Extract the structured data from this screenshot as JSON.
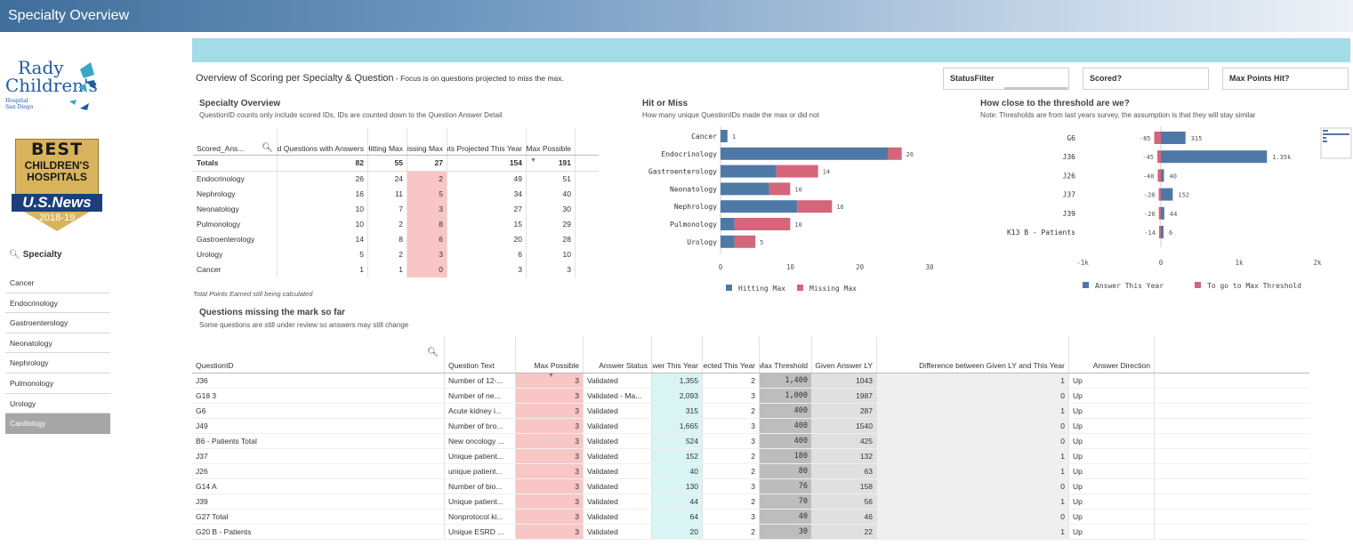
{
  "app": {
    "title": "Specialty Overview"
  },
  "logo": {
    "line1": "Rady",
    "line2": "Children's",
    "line3": "Hospital",
    "line4": "San Diego",
    "badge_best": "BEST",
    "badge_line1": "CHILDREN'S",
    "badge_line2": "HOSPITALS",
    "badge_usnews": "U.S.News",
    "badge_year": "2018-19"
  },
  "sidebar": {
    "search_label": "Specialty",
    "items": [
      "Cancer",
      "Endocrinology",
      "Gastroenterology",
      "Neonatology",
      "Nephrology",
      "Pulmonology",
      "Urology",
      "Cardiology"
    ],
    "selected": "Cardiology"
  },
  "overview": {
    "title": "Overview of Scoring per Specialty & Question",
    "subtitle": " - Focus is on questions projected to miss the max."
  },
  "filters": [
    "StatusFilter",
    "Scored?",
    "Max Points Hit?"
  ],
  "specialty_overview": {
    "title": "Specialty Overview",
    "subtitle": "QuestionID counts only include scored IDs, IDs are counted down to the Question Answer Detail",
    "headers": [
      "Scored_Ans...",
      "Total Scored Questions with Answers",
      "Hitting Max",
      "Missing Max",
      "Points Projected This Year",
      "Max Possible"
    ],
    "totals": [
      "Totals",
      "82",
      "55",
      "27",
      "154",
      "191"
    ],
    "rows": [
      [
        "Endocrinology",
        "26",
        "24",
        "2",
        "49",
        "51"
      ],
      [
        "Nephrology",
        "16",
        "11",
        "5",
        "34",
        "40"
      ],
      [
        "Neonatology",
        "10",
        "7",
        "3",
        "27",
        "30"
      ],
      [
        "Pulmonology",
        "10",
        "2",
        "8",
        "15",
        "29"
      ],
      [
        "Gastroenterology",
        "14",
        "8",
        "6",
        "20",
        "28"
      ],
      [
        "Urology",
        "5",
        "2",
        "3",
        "6",
        "10"
      ],
      [
        "Cancer",
        "1",
        "1",
        "0",
        "3",
        "3"
      ]
    ],
    "note": "Total Points Earned still being calculated"
  },
  "hit_or_miss": {
    "title": "Hit or Miss",
    "subtitle": "How many unique QuestionIDs made the max or did not"
  },
  "threshold": {
    "title": "How close to the threshold are we?",
    "subtitle": "Note: Thresholds are from last years survey, the assumption is that they will stay similar"
  },
  "chart_data": [
    {
      "type": "bar",
      "orientation": "horizontal",
      "stacked": true,
      "categories": [
        "Cancer",
        "Endocrinology",
        "Gastroenterology",
        "Neonatology",
        "Nephrology",
        "Pulmonology",
        "Urology"
      ],
      "series": [
        {
          "name": "Hitting Max",
          "color": "#4e79a7",
          "values": [
            1,
            24,
            8,
            7,
            11,
            2,
            2
          ]
        },
        {
          "name": "Missing Max",
          "color": "#d4657a",
          "values": [
            0,
            2,
            6,
            3,
            5,
            8,
            3
          ]
        }
      ],
      "totals_labels": [
        "1",
        "26",
        "14",
        "10",
        "16",
        "10",
        "5"
      ],
      "xlim": [
        0,
        30
      ],
      "xticks": [
        "0",
        "10",
        "20",
        "30"
      ],
      "legend": "bottom"
    },
    {
      "type": "bar",
      "orientation": "horizontal",
      "categories": [
        "G6",
        "J36",
        "J26",
        "J37",
        "J39",
        "K13 B - Patients"
      ],
      "series": [
        {
          "name": "Answer This Year",
          "color": "#4e79a7",
          "values": [
            315,
            1355,
            40,
            152,
            44,
            6
          ]
        },
        {
          "name": "To go to Max Threshold",
          "color": "#d4657a",
          "values": [
            -85,
            -45,
            -40,
            -28,
            -26,
            -14
          ]
        }
      ],
      "value_labels_positive": [
        "315",
        "1.35k",
        "40",
        "152",
        "44",
        "6"
      ],
      "value_labels_negative": [
        "-85",
        "-45",
        "-40",
        "-28",
        "-26",
        "-14"
      ],
      "xlim": [
        -1000,
        2000
      ],
      "xticks": [
        "-1k",
        "0",
        "1k",
        "2k"
      ],
      "legend": "bottom"
    }
  ],
  "questions": {
    "title": "Questions missing the mark so far",
    "subtitle": "Some questions are still under review so answers may still change",
    "headers": [
      "QuestionID",
      "Question Text",
      "Max Possible",
      "Answer Status",
      "Answer This Year",
      "Points Projected This Year",
      "Max Threshold",
      "Given Answer LY",
      "Difference between Given LY and This Year",
      "Answer Direction"
    ],
    "rows": [
      [
        "J36",
        "Number of 12-...",
        "3",
        "Validated",
        "1,355",
        "2",
        "1,400",
        "1043",
        "1",
        "Up"
      ],
      [
        "G18 3",
        "Number of ne...",
        "3",
        "Validated - Ma...",
        "2,093",
        "3",
        "1,000",
        "1987",
        "0",
        "Up"
      ],
      [
        "G6",
        "Acute kidney i...",
        "3",
        "Validated",
        "315",
        "2",
        "400",
        "287",
        "1",
        "Up"
      ],
      [
        "J49",
        "Number of bro...",
        "3",
        "Validated",
        "1,665",
        "3",
        "400",
        "1540",
        "0",
        "Up"
      ],
      [
        "B6 - Patients Total",
        "New oncology ...",
        "3",
        "Validated",
        "524",
        "3",
        "400",
        "425",
        "0",
        "Up"
      ],
      [
        "J37",
        "Unique patient...",
        "3",
        "Validated",
        "152",
        "2",
        "180",
        "132",
        "1",
        "Up"
      ],
      [
        "J26",
        "unique patient...",
        "3",
        "Validated",
        "40",
        "2",
        "80",
        "63",
        "1",
        "Up"
      ],
      [
        "G14 A",
        "Number of bio...",
        "3",
        "Validated",
        "130",
        "3",
        "76",
        "158",
        "0",
        "Up"
      ],
      [
        "J39",
        "Unique patient...",
        "3",
        "Validated",
        "44",
        "2",
        "70",
        "56",
        "1",
        "Up"
      ],
      [
        "G27 Total",
        "Nonprotocol ki...",
        "3",
        "Validated",
        "64",
        "3",
        "40",
        "46",
        "0",
        "Up"
      ],
      [
        "G20 B - Patients",
        "Unique ESRD ...",
        "3",
        "Validated",
        "20",
        "2",
        "30",
        "22",
        "1",
        "Up"
      ]
    ]
  }
}
